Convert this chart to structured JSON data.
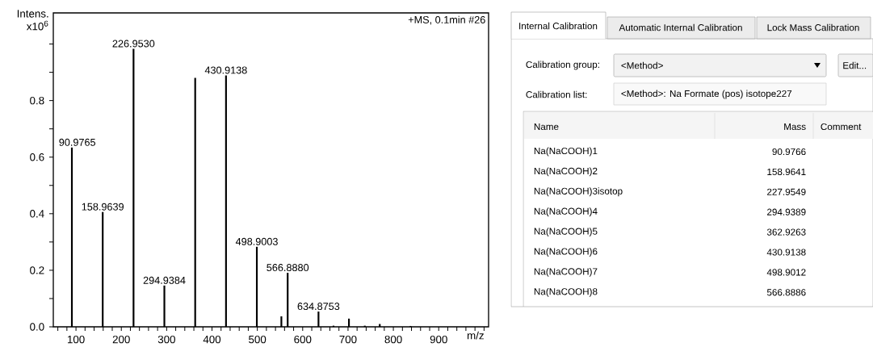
{
  "chart_data": [
    {
      "type": "bar",
      "ylabel": "Intens. x10$^{6}$",
      "xlabel": "m/z",
      "x": [
        90.9765,
        158.9639,
        226.953,
        294.9384,
        362.93,
        430.9138,
        498.9003,
        553,
        566.888,
        634.8753,
        668,
        702,
        737,
        770,
        838
      ],
      "values": [
        0.634,
        0.406,
        0.983,
        0.146,
        0.88,
        0.889,
        0.283,
        0.037,
        0.191,
        0.054,
        0.004,
        0.029,
        0.004,
        0.01,
        0.003
      ],
      "color": "#000000",
      "xlim": [
        50,
        1010
      ],
      "ylim": [
        0,
        1.11
      ],
      "xticks": [
        {
          "value": 60,
          "label": null
        },
        {
          "value": 80,
          "label": null
        },
        100,
        {
          "value": 120,
          "label": null
        },
        {
          "value": 140,
          "label": null
        },
        {
          "value": 160,
          "label": null
        },
        {
          "value": 180,
          "label": null
        },
        200,
        {
          "value": 220,
          "label": null
        },
        {
          "value": 240,
          "label": null
        },
        {
          "value": 260,
          "label": null
        },
        {
          "value": 280,
          "label": null
        },
        300,
        {
          "value": 320,
          "label": null
        },
        {
          "value": 340,
          "label": null
        },
        {
          "value": 360,
          "label": null
        },
        {
          "value": 380,
          "label": null
        },
        400,
        {
          "value": 420,
          "label": null
        },
        {
          "value": 440,
          "label": null
        },
        {
          "value": 460,
          "label": null
        },
        {
          "value": 480,
          "label": null
        },
        500,
        {
          "value": 520,
          "label": null
        },
        {
          "value": 540,
          "label": null
        },
        {
          "value": 560,
          "label": null
        },
        {
          "value": 580,
          "label": null
        },
        600,
        {
          "value": 620,
          "label": null
        },
        {
          "value": 640,
          "label": null
        },
        {
          "value": 660,
          "label": null
        },
        {
          "value": 680,
          "label": null
        },
        700,
        {
          "value": 720,
          "label": null
        },
        {
          "value": 740,
          "label": null
        },
        {
          "value": 760,
          "label": null
        },
        {
          "value": 780,
          "label": null
        },
        800,
        {
          "value": 820,
          "label": null
        },
        {
          "value": 840,
          "label": null
        },
        {
          "value": 860,
          "label": null
        },
        {
          "value": 880,
          "label": null
        },
        900,
        {
          "value": 920,
          "label": null
        },
        {
          "value": 940,
          "label": null
        },
        {
          "value": 960,
          "label": null
        },
        {
          "value": 980,
          "label": null
        },
        {
          "value": 1000,
          "label": null
        }
      ],
      "yticks": [
        {
          "value": 0,
          "label": "0.0"
        },
        {
          "value": 0.1,
          "label": null
        },
        {
          "value": 0.2,
          "label": "0.2"
        },
        {
          "value": 0.3,
          "label": null
        },
        {
          "value": 0.4,
          "label": "0.4"
        },
        {
          "value": 0.5,
          "label": null
        },
        {
          "value": 0.6,
          "label": "0.6"
        },
        {
          "value": 0.7,
          "label": null
        },
        {
          "value": 0.8,
          "label": "0.8"
        },
        {
          "value": 0.9,
          "label": null
        },
        {
          "value": 1.0,
          "label": null
        }
      ],
      "annotations": [
        {
          "text": "90.9765",
          "x": 90.9765,
          "y": 0.634
        },
        {
          "text": "158.9639",
          "x": 158.9639,
          "y": 0.406
        },
        {
          "text": "226.9530",
          "x": 226.953,
          "y": 0.983
        },
        {
          "text": "294.9384",
          "x": 294.9384,
          "y": 0.146
        },
        {
          "text": "430.9138",
          "x": 430.9138,
          "y": 0.889
        },
        {
          "text": "498.9003",
          "x": 498.9003,
          "y": 0.283
        },
        {
          "text": "566.8880",
          "x": 566.888,
          "y": 0.191
        },
        {
          "text": "634.8753",
          "x": 634.8753,
          "y": 0.054
        },
        "+MS, 0.1min #26"
      ]
    },
    {
      "type": "other",
      "annotations": [
        "Internal Calibration",
        "Automatic Internal Calibration",
        "Lock Mass Calibration",
        "Calibration group:",
        "<Method>",
        "Edit...",
        "Calibration list:",
        "<Method>: Na Formate (pos) isotope227",
        "Name",
        "Mass",
        "Comment",
        "Na(NaCOOH)1",
        "90.9766",
        "Na(NaCOOH)2",
        "158.9641",
        "Na(NaCOOH)3isotop",
        "227.9549",
        "Na(NaCOOH)4",
        "294.9389",
        "Na(NaCOOH)5",
        "362.9263",
        "Na(NaCOOH)6",
        "430.9138",
        "Na(NaCOOH)7",
        "498.9012",
        "Na(NaCOOH)8",
        "566.8886"
      ]
    }
  ]
}
